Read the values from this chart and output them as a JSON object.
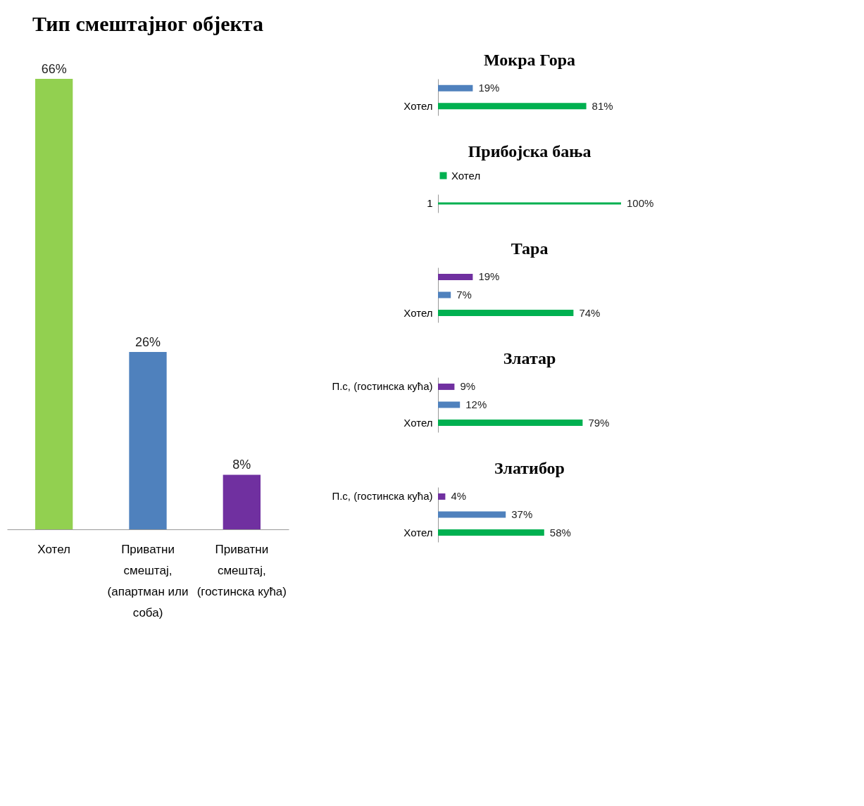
{
  "chart_data": [
    {
      "type": "bar",
      "title": "Тип смештајног објекта",
      "categories": [
        "Хотел",
        "Приватни смештај, (апартман или соба)",
        "Приватни смештај, (гостинска кућа)"
      ],
      "values": [
        66,
        26,
        8
      ],
      "colors": [
        "#92d050",
        "#4f81bd",
        "#7030a0"
      ],
      "value_labels": [
        "66%",
        "26%",
        "8%"
      ],
      "legend": false
    },
    {
      "type": "bar",
      "orientation": "horizontal",
      "title": "Мокра Гора",
      "categories": [
        null,
        "Хотел"
      ],
      "values": [
        19,
        81
      ],
      "colors": [
        "#4f81bd",
        "#00b050"
      ],
      "value_labels": [
        "19%",
        "81%"
      ],
      "legend": false
    },
    {
      "type": "bar",
      "orientation": "horizontal",
      "title": "Прибојска бања",
      "categories": [
        "1"
      ],
      "series": [
        {
          "name": "Хотел",
          "color": "#00b050",
          "values": [
            100
          ],
          "value_labels": [
            "100%"
          ]
        }
      ],
      "legend": "top"
    },
    {
      "type": "bar",
      "orientation": "horizontal",
      "title": "Тара",
      "categories": [
        null,
        null,
        "Хотел"
      ],
      "values": [
        19,
        7,
        74
      ],
      "colors": [
        "#7030a0",
        "#4f81bd",
        "#00b050"
      ],
      "value_labels": [
        "19%",
        "7%",
        "74%"
      ],
      "legend": false
    },
    {
      "type": "bar",
      "orientation": "horizontal",
      "title": "Златар",
      "categories": [
        "П.с, (гостинска кућа)",
        null,
        "Хотел"
      ],
      "values": [
        9,
        12,
        79
      ],
      "colors": [
        "#7030a0",
        "#4f81bd",
        "#00b050"
      ],
      "value_labels": [
        "9%",
        "12%",
        "79%"
      ],
      "legend": false
    },
    {
      "type": "bar",
      "orientation": "horizontal",
      "title": "Златибор",
      "categories": [
        "П.с, (гостинска кућа)",
        null,
        "Хотел"
      ],
      "values": [
        4,
        37,
        58
      ],
      "colors": [
        "#7030a0",
        "#4f81bd",
        "#00b050"
      ],
      "value_labels": [
        "4%",
        "37%",
        "58%"
      ],
      "legend": false
    }
  ]
}
